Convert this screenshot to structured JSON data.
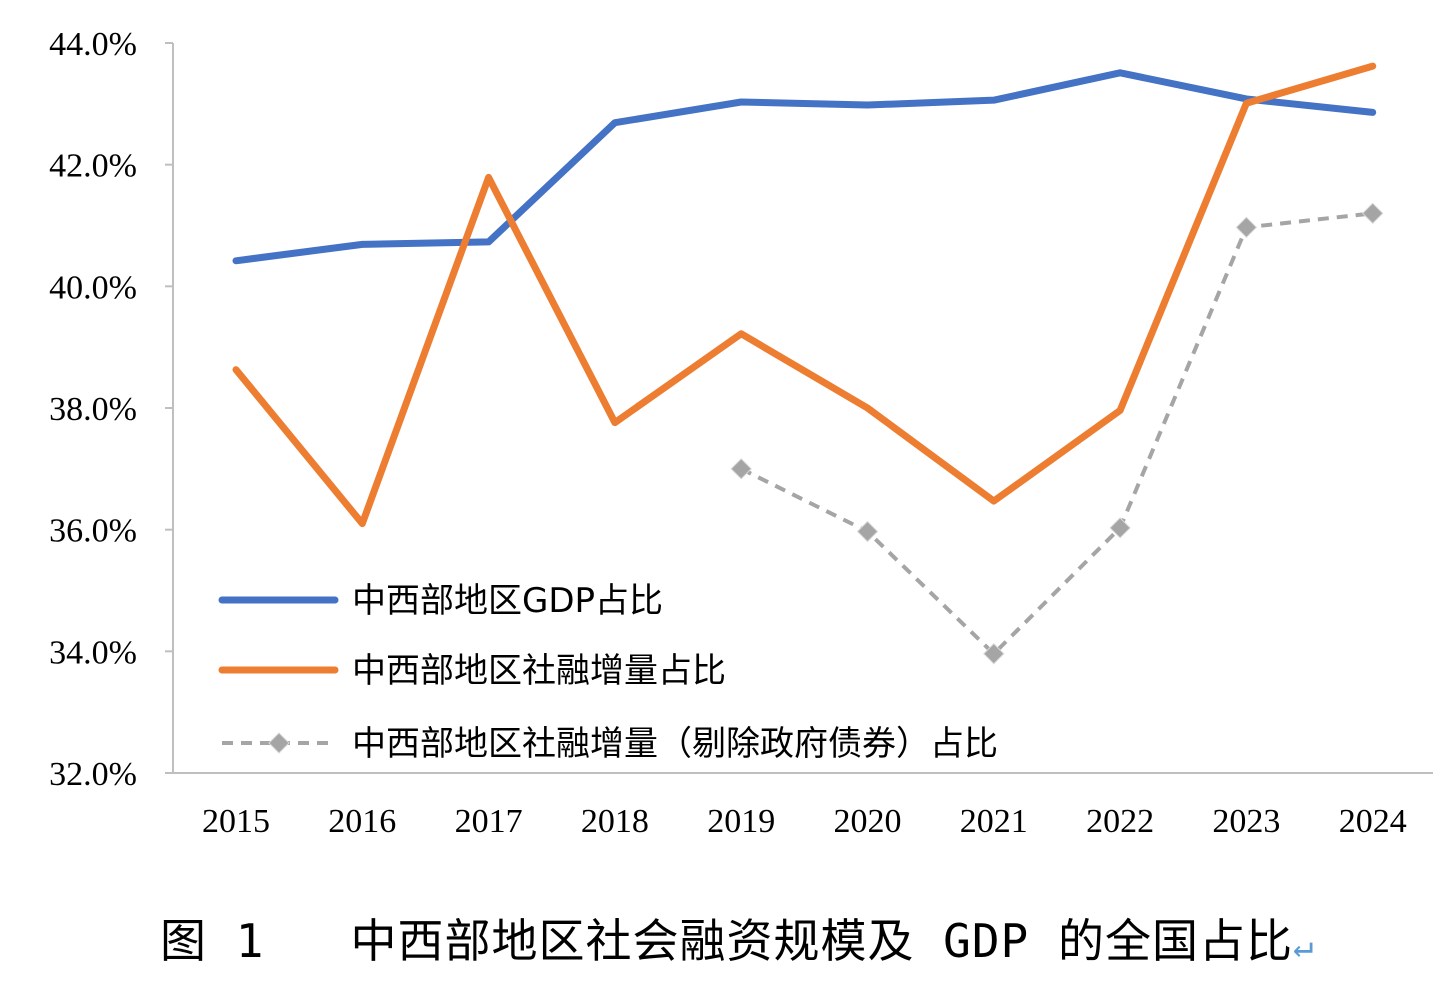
{
  "chart_data": {
    "type": "line",
    "categories": [
      "2015",
      "2016",
      "2017",
      "2018",
      "2019",
      "2020",
      "2021",
      "2022",
      "2023",
      "2024"
    ],
    "ylim": [
      32.0,
      44.0
    ],
    "yticks": [
      32.0,
      34.0,
      36.0,
      38.0,
      40.0,
      42.0,
      44.0
    ],
    "ytick_labels": [
      "32.0%",
      "34.0%",
      "36.0%",
      "38.0%",
      "40.0%",
      "42.0%",
      "44.0%"
    ],
    "grid": false,
    "legend_position": "bottom-left",
    "series": [
      {
        "name": "中西部地区GDP占比",
        "color": "#4472c4",
        "style": "solid",
        "marker": "none",
        "values": [
          40.42,
          40.69,
          40.73,
          42.69,
          43.03,
          42.98,
          43.06,
          43.51,
          43.08,
          42.86
        ]
      },
      {
        "name": "中西部地区社融增量占比",
        "color": "#ed7d31",
        "style": "solid",
        "marker": "none",
        "values": [
          38.63,
          36.1,
          41.79,
          37.76,
          39.22,
          38.0,
          36.47,
          37.96,
          43.01,
          43.62
        ]
      },
      {
        "name": "中西部地区社融增量（剔除政府债券）占比",
        "color": "#a5a5a5",
        "style": "dashed",
        "marker": "diamond",
        "values": [
          null,
          null,
          null,
          null,
          37.0,
          35.97,
          33.96,
          36.03,
          40.97,
          41.2
        ]
      }
    ]
  },
  "caption": {
    "text": "图 1   中西部地区社会融资规模及 GDP 的全国占比",
    "return_mark": "↵"
  }
}
